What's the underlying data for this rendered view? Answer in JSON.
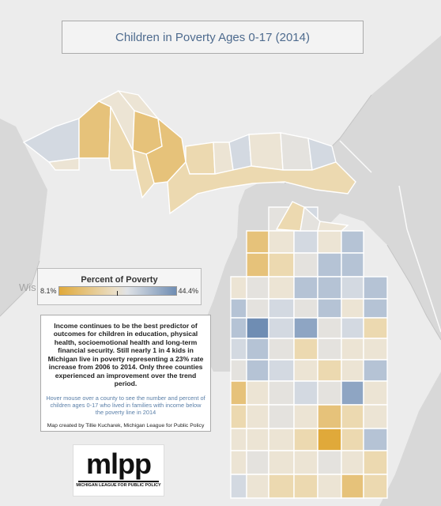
{
  "title": "Children in Poverty Ages 0-17 (2014)",
  "legend": {
    "title": "Percent of Poverty",
    "min_label": "8.1%",
    "max_label": "44.4%",
    "min_color": "#e0a93a",
    "max_color": "#6f8db3"
  },
  "basemap_label": "Wis",
  "info": {
    "body": "Income continues to be the best predictor of outcomes for children in education, physical health, socioemotional health and long-term financial security. Still nearly 1 in 4 kids in Michigan live in poverty representing a 23% rate increase from 2006 to 2014. Only three counties experienced an improvement over the trend period.",
    "hover": "Hover mouse over a county to see the number and percent of children ages 0-17 who lived in families with income below the poverty line in 2014",
    "credit": "Map created by Tillie Kucharek, Michigan League for Public Policy"
  },
  "logo": {
    "word": "mlpp",
    "subtitle": "MICHIGAN LEAGUE FOR PUBLIC POLICY"
  },
  "colors": {
    "land": "#d8d8d8",
    "water": "#ececec",
    "border": "#a8a8a8"
  }
}
